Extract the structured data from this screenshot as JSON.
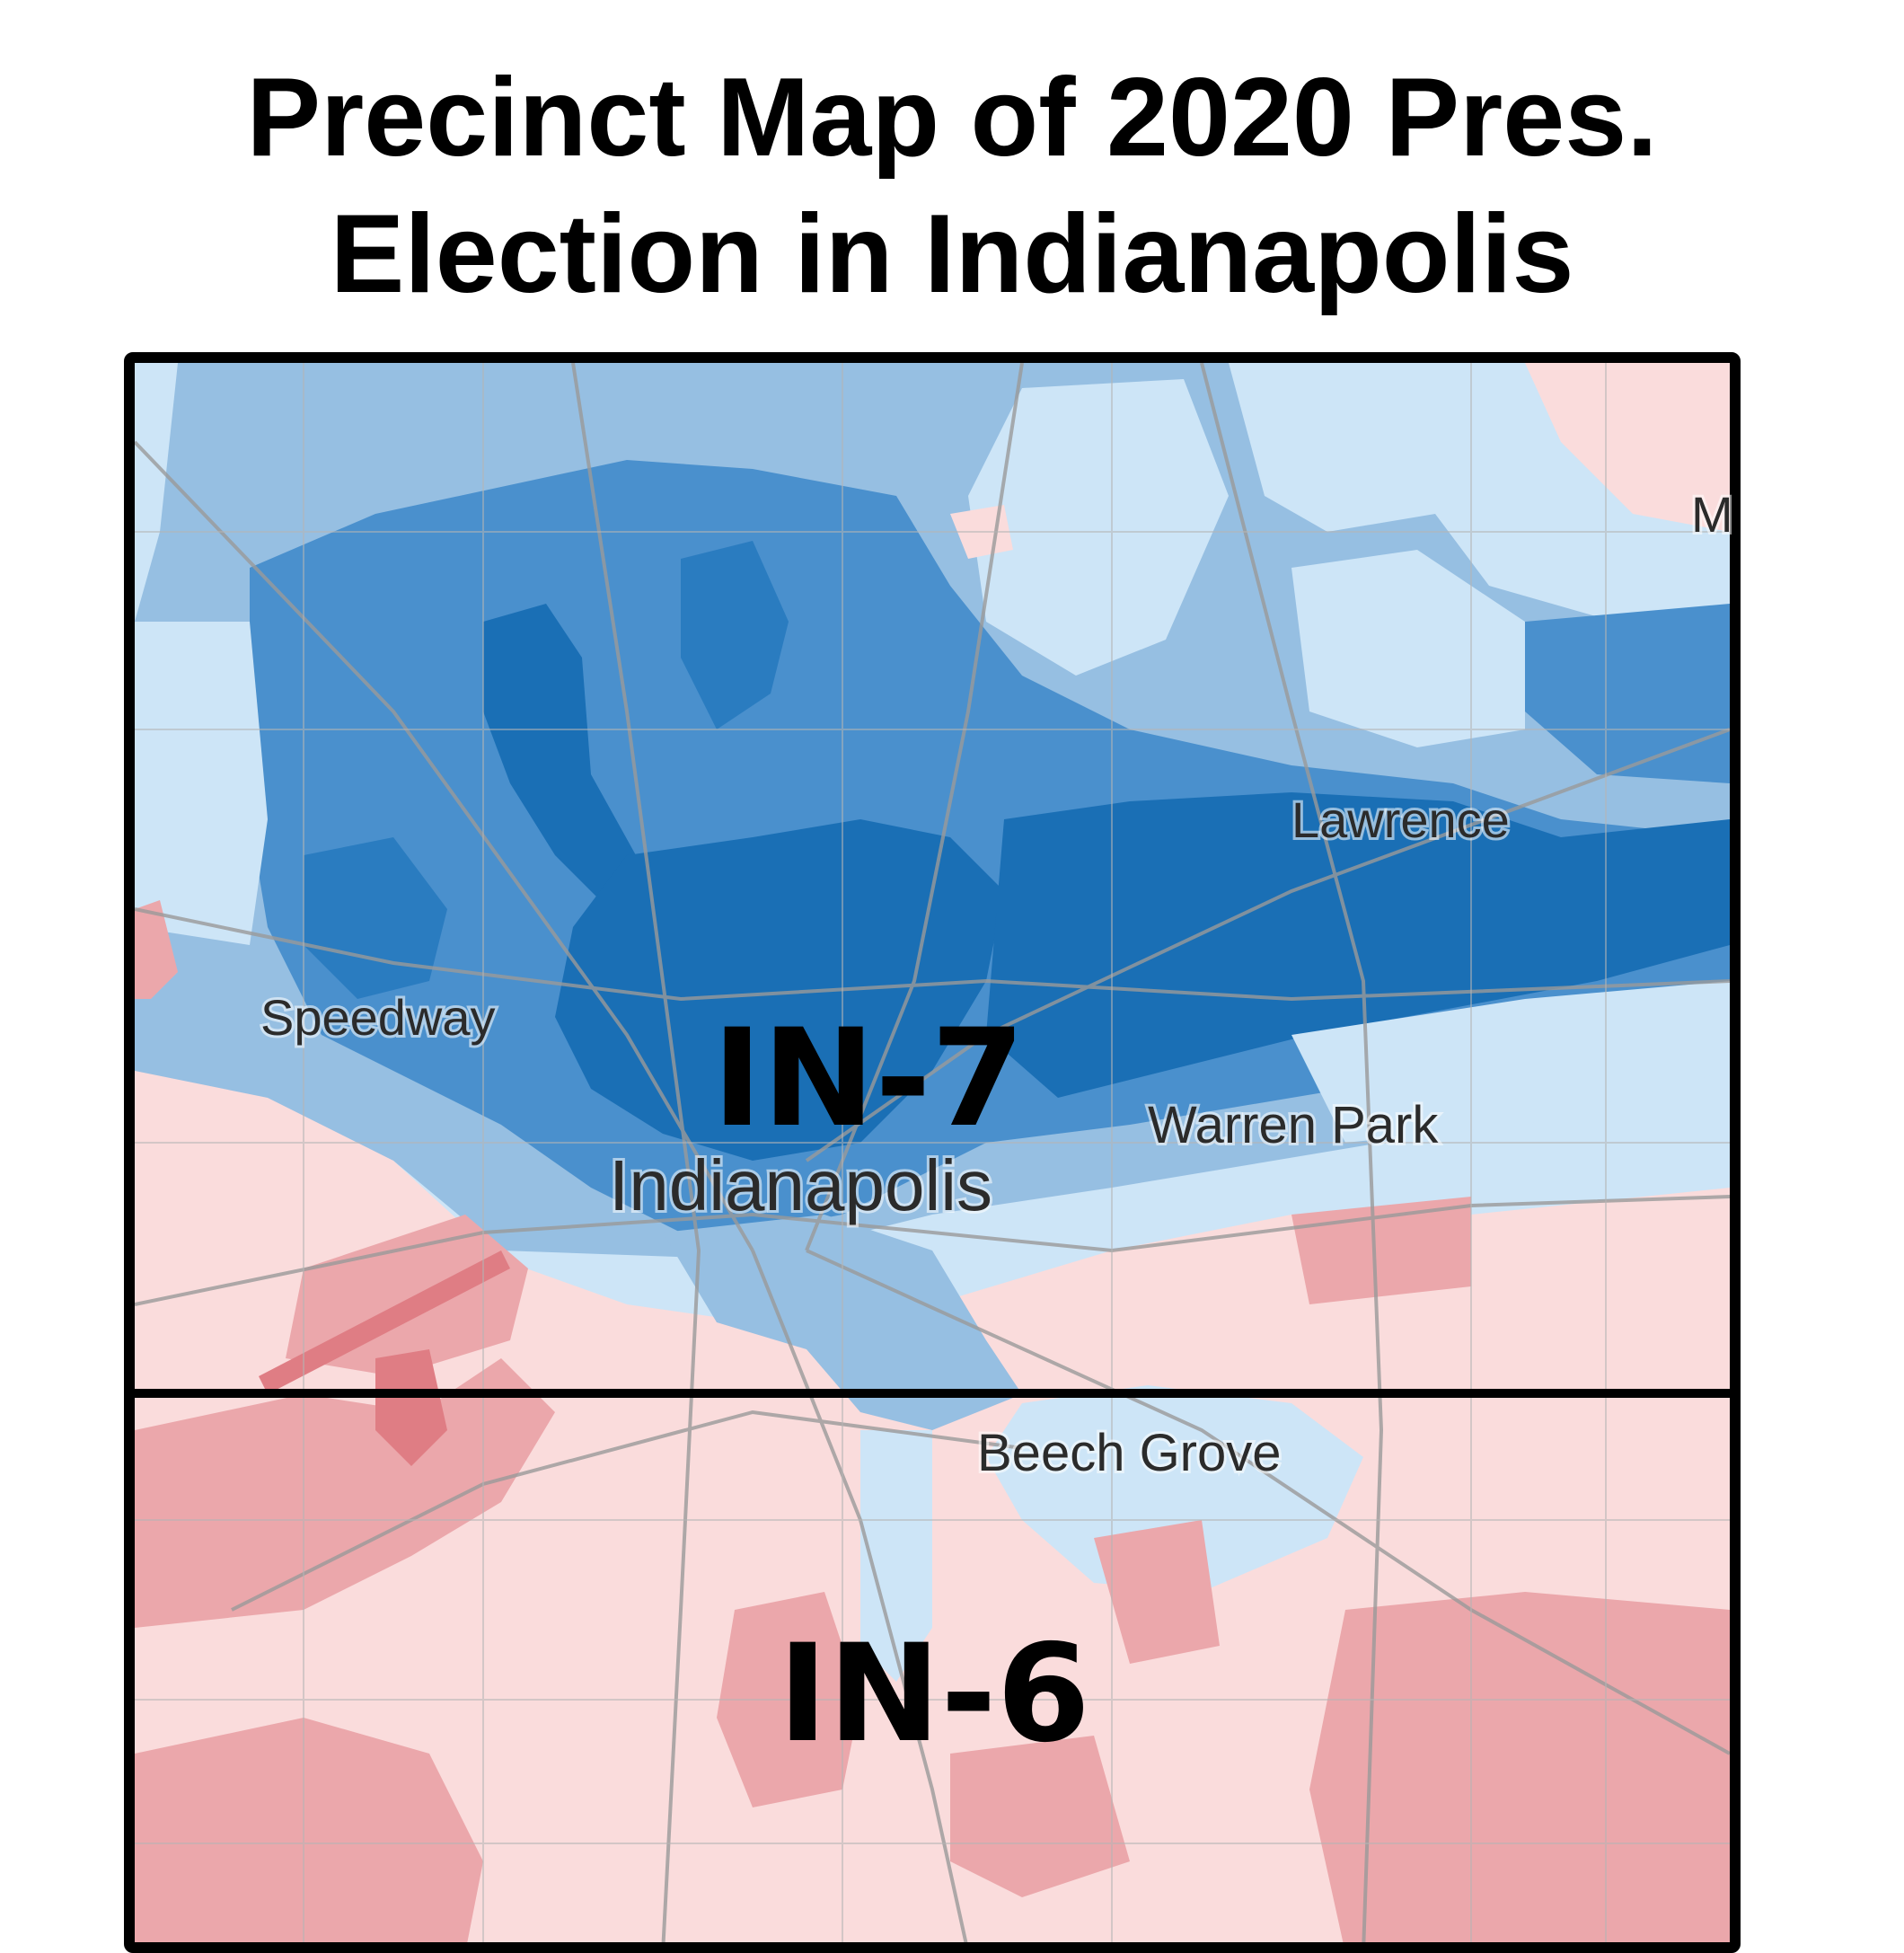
{
  "title": {
    "line1": "Precinct Map of 2020 Pres.",
    "line2": "Election in Indianapolis"
  },
  "map": {
    "districts": [
      {
        "label": "IN-7",
        "color": "#1a73ba"
      },
      {
        "label": "IN-6",
        "color": "#e8a0a4"
      }
    ],
    "places": [
      "Lawrence",
      "Speedway",
      "Indianapolis",
      "Warren Park",
      "Beech Grove",
      "M"
    ],
    "colors": {
      "dem_strong": "#1a6fb5",
      "dem_medium": "#4a90cd",
      "dem_light": "#96bfe2",
      "dem_faint": "#cde5f7",
      "rep_faint": "#fadcdc",
      "rep_light": "#eba7ab",
      "rep_medium": "#df7d84",
      "roads": "#9a9a9a",
      "border": "#000000"
    }
  }
}
